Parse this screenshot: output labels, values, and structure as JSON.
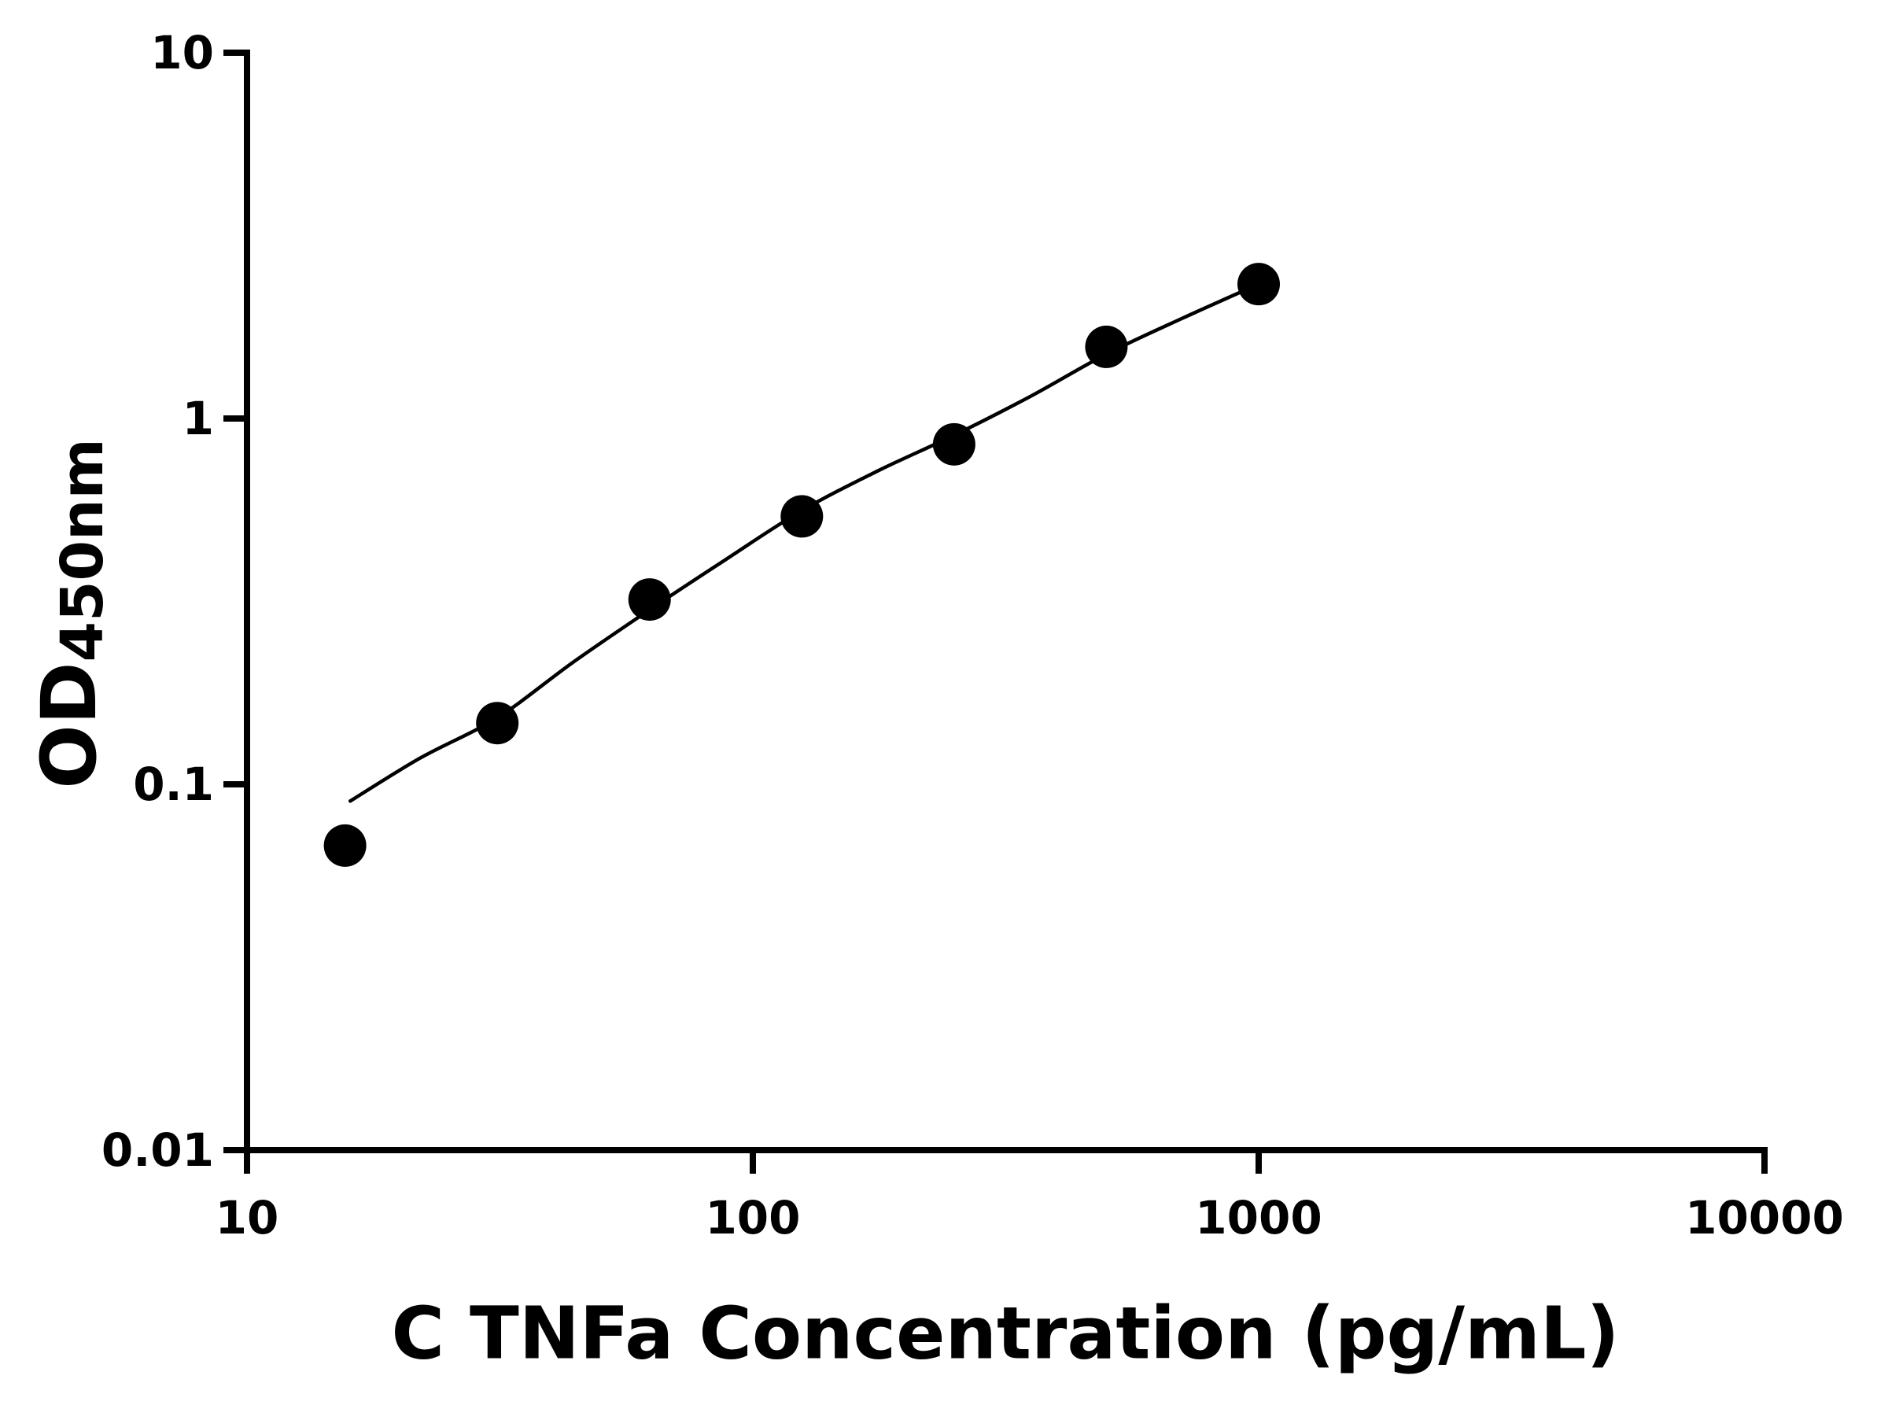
{
  "chart_data": {
    "type": "scatter",
    "title": "",
    "xlabel": "C TNFa Concentration (pg/mL)",
    "ylabel_main": "OD",
    "ylabel_sub": "450nm",
    "x_scale": "log",
    "y_scale": "log",
    "xlim": [
      10,
      10000
    ],
    "ylim": [
      0.01,
      10
    ],
    "grid": false,
    "legend": "none",
    "x_ticks": [
      10,
      100,
      1000,
      10000
    ],
    "x_tick_labels": [
      "10",
      "100",
      "1000",
      "10000"
    ],
    "y_ticks": [
      0.01,
      0.1,
      1,
      10
    ],
    "y_tick_labels": [
      "0.01",
      "0.1",
      "1",
      "10"
    ],
    "series": [
      {
        "name": "standard-points",
        "marker": "filled-circle",
        "x": [
          15.625,
          31.25,
          62.5,
          125,
          250,
          500,
          1000
        ],
        "y": [
          0.068,
          0.147,
          0.32,
          0.54,
          0.85,
          1.57,
          2.33
        ]
      }
    ],
    "fit_curve": {
      "name": "standard-curve-fit",
      "x": [
        16,
        22,
        31.25,
        44,
        62.5,
        88,
        125,
        177,
        250,
        354,
        500,
        707,
        1000
      ],
      "y": [
        0.09,
        0.118,
        0.152,
        0.215,
        0.3,
        0.41,
        0.56,
        0.72,
        0.9,
        1.15,
        1.5,
        1.88,
        2.33
      ]
    },
    "colors": {
      "points": "#000000",
      "line": "#000000",
      "axis": "#000000",
      "text": "#000000",
      "background": "#ffffff"
    }
  }
}
